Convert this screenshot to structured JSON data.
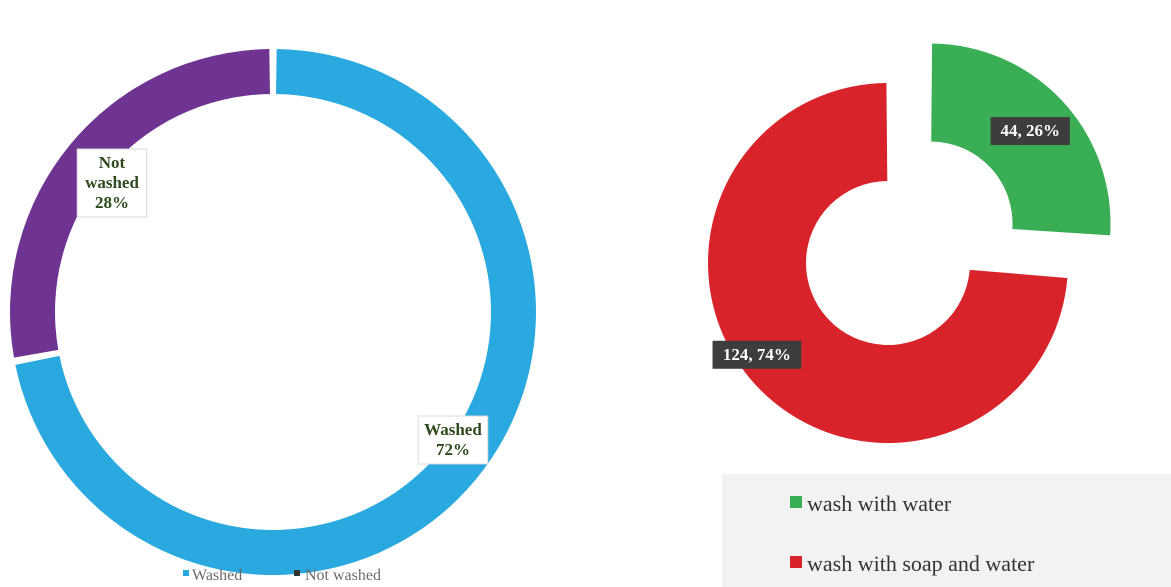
{
  "chart_data": [
    {
      "type": "pie",
      "subtype": "donut",
      "title": "",
      "categories": [
        "Washed",
        "Not washed"
      ],
      "values": [
        72,
        28
      ],
      "colors": [
        "#29a9df",
        "#6f3391"
      ],
      "data_labels": [
        {
          "name": "Washed",
          "value": "72%"
        },
        {
          "name": "Not\nwashed",
          "value": "28%"
        }
      ],
      "legend": {
        "placement": "bottom",
        "items": [
          {
            "label": "Washed",
            "color": "#29a9df"
          },
          {
            "label": "Not washed",
            "color": "#333333"
          }
        ]
      }
    },
    {
      "type": "pie",
      "subtype": "exploded-donut",
      "title": "",
      "categories": [
        "wash with water",
        "wash with soap and water"
      ],
      "values": [
        44,
        124
      ],
      "percents": [
        26,
        74
      ],
      "colors": [
        "#3aae54",
        "#d9232a"
      ],
      "data_labels": [
        "44, 26%",
        "124, 74%"
      ],
      "legend": {
        "placement": "bottom-right",
        "items": [
          {
            "label": "wash with water",
            "color": "#3aae54"
          },
          {
            "label": "wash with soap and water",
            "color": "#d9232a"
          }
        ]
      }
    }
  ]
}
